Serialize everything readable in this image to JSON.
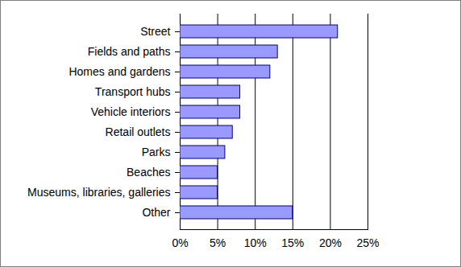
{
  "chart_data": {
    "type": "bar",
    "orientation": "horizontal",
    "categories": [
      "Other",
      "Museums, libraries, galleries",
      "Beaches",
      "Parks",
      "Retail outlets",
      "Vehicle interiors",
      "Transport hubs",
      "Homes and gardens",
      "Fields and paths",
      "Street"
    ],
    "values": [
      15,
      5,
      5,
      6,
      7,
      8,
      8,
      12,
      13,
      21
    ],
    "color": "#9999ff",
    "xlim": [
      0,
      25
    ],
    "xticks": [
      {
        "value": 0,
        "label": "0%"
      },
      {
        "value": 5,
        "label": "5%"
      },
      {
        "value": 10,
        "label": "10%"
      },
      {
        "value": 15,
        "label": "15%"
      },
      {
        "value": 20,
        "label": "20%"
      },
      {
        "value": 25,
        "label": "25%"
      }
    ],
    "grid": true
  }
}
